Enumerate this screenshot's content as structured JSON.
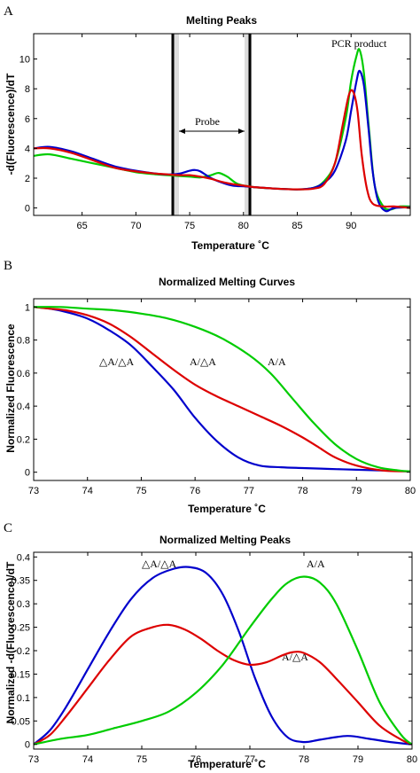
{
  "chart_data": [
    {
      "panel": "A",
      "type": "line",
      "title": "Melting Peaks",
      "xlabel": "Temperature ˚C",
      "ylabel": "-d(Fluorescence)/dT",
      "xlim": [
        60.5,
        95.5
      ],
      "ylim": [
        -0.5,
        11.7
      ],
      "xticks": [
        65,
        70,
        75,
        80,
        85,
        90
      ],
      "yticks": [
        0,
        2,
        4,
        6,
        8,
        10
      ],
      "annotations": [
        "PCR product",
        "Probe"
      ],
      "series": [
        {
          "color": "#00cc00",
          "x": [
            60.5,
            62,
            64,
            66,
            68,
            70,
            72,
            73,
            74,
            75,
            76,
            77,
            77.7,
            78.5,
            79.5,
            81,
            83,
            85,
            86.5,
            87.5,
            88.5,
            89.5,
            90,
            90.5,
            90.8,
            91.2,
            91.7,
            92.2,
            93,
            93.7,
            94.5,
            95.5
          ],
          "y": [
            3.5,
            3.6,
            3.3,
            3.0,
            2.7,
            2.4,
            2.25,
            2.2,
            2.15,
            2.1,
            2.05,
            2.2,
            2.35,
            2.1,
            1.6,
            1.4,
            1.3,
            1.25,
            1.35,
            1.8,
            3.0,
            6.0,
            8.5,
            10.2,
            10.6,
            9.0,
            5.0,
            1.5,
            0.1,
            -0.1,
            0.1,
            0.1
          ]
        },
        {
          "color": "#0000cc",
          "x": [
            60.5,
            62,
            64,
            66,
            68,
            70,
            72,
            73,
            74,
            75,
            75.5,
            76,
            77,
            78,
            79,
            80,
            81,
            83,
            85,
            86.5,
            87.5,
            88.5,
            89.5,
            90,
            90.5,
            90.8,
            91.2,
            91.6,
            92,
            92.5,
            93.2,
            94,
            95.5
          ],
          "y": [
            4.0,
            4.1,
            3.8,
            3.3,
            2.8,
            2.5,
            2.3,
            2.25,
            2.3,
            2.5,
            2.55,
            2.45,
            2.0,
            1.7,
            1.5,
            1.45,
            1.4,
            1.3,
            1.25,
            1.35,
            1.7,
            2.5,
            4.5,
            6.5,
            8.5,
            9.2,
            8.2,
            5.5,
            2.5,
            0.5,
            -0.2,
            0.0,
            0.05
          ]
        },
        {
          "color": "#dd0000",
          "x": [
            60.5,
            62,
            64,
            66,
            68,
            70,
            72,
            73,
            74,
            75,
            76,
            77,
            78,
            79,
            80,
            81,
            83,
            85,
            86.5,
            87.5,
            88.5,
            89.2,
            89.8,
            90.2,
            90.6,
            91,
            91.5,
            92,
            93,
            94,
            95.5
          ],
          "y": [
            4.0,
            4.0,
            3.7,
            3.2,
            2.7,
            2.45,
            2.3,
            2.25,
            2.2,
            2.2,
            2.1,
            1.95,
            1.75,
            1.6,
            1.5,
            1.4,
            1.3,
            1.25,
            1.3,
            1.6,
            3.0,
            5.5,
            7.6,
            7.8,
            6.5,
            3.5,
            1.2,
            0.3,
            0.1,
            0.1,
            0.0
          ]
        }
      ]
    },
    {
      "panel": "B",
      "type": "line",
      "title": "Normalized Melting Curves",
      "xlabel": "Temperature ˚C",
      "ylabel": "Normalized Fluorescence",
      "xlim": [
        73,
        80
      ],
      "ylim": [
        -0.05,
        1.05
      ],
      "xticks": [
        73,
        74,
        75,
        76,
        77,
        78,
        79,
        80
      ],
      "yticks": [
        0,
        0.2,
        0.4,
        0.6,
        0.8,
        1
      ],
      "annotations": [
        "△A/△A",
        "A/△A",
        "A/A"
      ],
      "series": [
        {
          "color": "#0000cc",
          "x": [
            73,
            73.3,
            73.6,
            74,
            74.4,
            74.8,
            75.2,
            75.6,
            76,
            76.4,
            76.8,
            77.2,
            77.6,
            78,
            78.5,
            79,
            79.5,
            80
          ],
          "y": [
            1.0,
            0.99,
            0.97,
            0.93,
            0.86,
            0.77,
            0.64,
            0.5,
            0.33,
            0.19,
            0.09,
            0.04,
            0.03,
            0.025,
            0.02,
            0.015,
            0.01,
            0.005
          ]
        },
        {
          "color": "#dd0000",
          "x": [
            73,
            73.3,
            73.6,
            74,
            74.4,
            74.8,
            75.2,
            75.6,
            76,
            76.4,
            76.8,
            77.2,
            77.6,
            78,
            78.3,
            78.6,
            79,
            79.5,
            80
          ],
          "y": [
            1.0,
            0.99,
            0.98,
            0.95,
            0.9,
            0.82,
            0.72,
            0.62,
            0.53,
            0.46,
            0.4,
            0.34,
            0.28,
            0.21,
            0.15,
            0.09,
            0.04,
            0.01,
            0.005
          ]
        },
        {
          "color": "#00cc00",
          "x": [
            73,
            73.5,
            74,
            74.5,
            75,
            75.5,
            76,
            76.5,
            77,
            77.4,
            77.8,
            78.2,
            78.6,
            79,
            79.4,
            79.8,
            80
          ],
          "y": [
            1.0,
            1.0,
            0.99,
            0.98,
            0.96,
            0.93,
            0.88,
            0.81,
            0.71,
            0.6,
            0.45,
            0.3,
            0.17,
            0.08,
            0.03,
            0.01,
            0.005
          ]
        }
      ]
    },
    {
      "panel": "C",
      "type": "line",
      "title": "Normalized Melting Peaks",
      "xlabel": "Temperature ˚C",
      "ylabel": "Normalized -d(Fluorescence)/dT",
      "xlim": [
        73,
        80
      ],
      "ylim": [
        -0.01,
        0.41
      ],
      "xticks": [
        73,
        74,
        75,
        76,
        77,
        78,
        79,
        80
      ],
      "yticks": [
        0,
        0.05,
        0.1,
        0.15,
        0.2,
        0.25,
        0.3,
        0.35,
        0.4
      ],
      "annotations": [
        "△A/△A",
        "A/A",
        "A/△A"
      ],
      "series": [
        {
          "color": "#0000cc",
          "x": [
            73,
            73.3,
            73.6,
            74,
            74.4,
            74.8,
            75.2,
            75.6,
            75.9,
            76.2,
            76.5,
            76.8,
            77.1,
            77.4,
            77.7,
            78,
            78.3,
            78.8,
            79.2,
            79.6,
            80
          ],
          "y": [
            0.0,
            0.03,
            0.08,
            0.16,
            0.24,
            0.31,
            0.355,
            0.375,
            0.378,
            0.365,
            0.32,
            0.24,
            0.14,
            0.06,
            0.015,
            0.005,
            0.01,
            0.018,
            0.012,
            0.005,
            0.0
          ]
        },
        {
          "color": "#dd0000",
          "x": [
            73,
            73.3,
            73.6,
            74,
            74.4,
            74.8,
            75.2,
            75.5,
            75.8,
            76.1,
            76.4,
            76.7,
            77,
            77.3,
            77.6,
            77.8,
            78,
            78.3,
            78.6,
            79,
            79.4,
            79.8,
            80
          ],
          "y": [
            0.0,
            0.02,
            0.06,
            0.12,
            0.18,
            0.23,
            0.25,
            0.255,
            0.245,
            0.225,
            0.2,
            0.18,
            0.17,
            0.175,
            0.19,
            0.197,
            0.195,
            0.175,
            0.14,
            0.09,
            0.04,
            0.01,
            0.0
          ]
        },
        {
          "color": "#00cc00",
          "x": [
            73,
            73.5,
            74,
            74.5,
            75,
            75.5,
            76,
            76.5,
            77,
            77.4,
            77.7,
            78,
            78.3,
            78.6,
            79,
            79.4,
            79.8,
            80
          ],
          "y": [
            0.0,
            0.012,
            0.02,
            0.035,
            0.05,
            0.07,
            0.11,
            0.17,
            0.25,
            0.31,
            0.345,
            0.358,
            0.345,
            0.3,
            0.2,
            0.09,
            0.02,
            0.0
          ]
        }
      ]
    }
  ]
}
